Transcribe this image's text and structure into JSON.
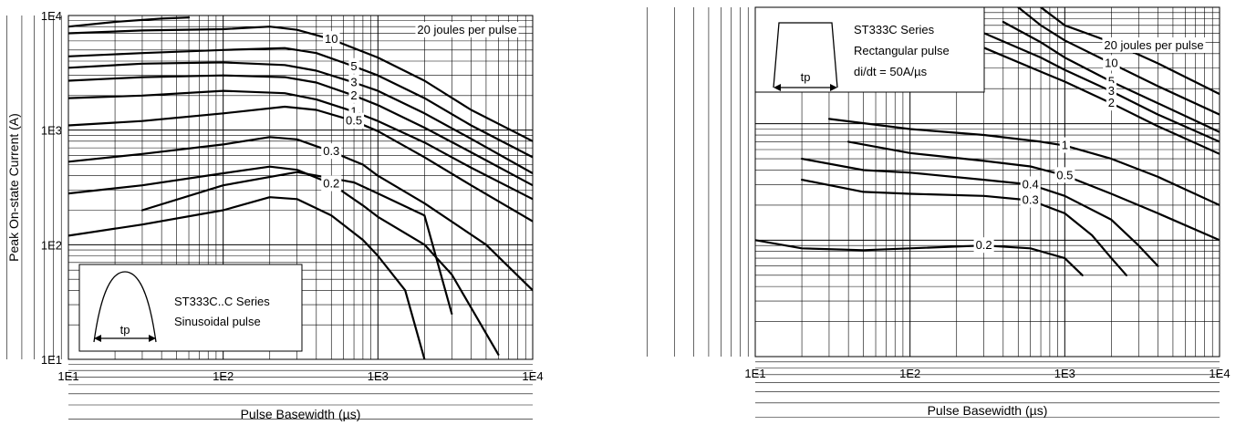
{
  "chart_data": [
    {
      "type": "line",
      "xscale": "log",
      "yscale": "log",
      "xlim": [
        10,
        10000
      ],
      "ylim": [
        10,
        10000
      ],
      "xticks": [
        "1E1",
        "1E2",
        "1E3",
        "1E4"
      ],
      "yticks": [
        "1E4",
        "1E3",
        "1E2",
        "1E1"
      ],
      "xlabel": "Pulse Basewidth (µs)",
      "ylabel": "Peak On-state Current (A)",
      "grid": true,
      "inset": {
        "lines": [
          "ST333C..C Series",
          "Sinusoidal pulse"
        ],
        "pulse_label": "tp",
        "shape": "sinusoidal"
      },
      "series": [
        {
          "label": "20 joules per pulse",
          "points": [
            [
              10,
              8000
            ],
            [
              20,
              8800
            ],
            [
              40,
              9400
            ],
            [
              60,
              9600
            ]
          ]
        },
        {
          "label": "10",
          "points": [
            [
              10,
              7000
            ],
            [
              30,
              7400
            ],
            [
              100,
              7600
            ],
            [
              200,
              8000
            ],
            [
              300,
              7500
            ],
            [
              500,
              6200
            ],
            [
              1000,
              4300
            ],
            [
              2000,
              2700
            ],
            [
              4000,
              1500
            ],
            [
              10000,
              800
            ]
          ]
        },
        {
          "label": "5",
          "points": [
            [
              10,
              4400
            ],
            [
              30,
              4700
            ],
            [
              100,
              5000
            ],
            [
              250,
              5200
            ],
            [
              400,
              4700
            ],
            [
              700,
              3600
            ],
            [
              1000,
              3000
            ],
            [
              2000,
              1900
            ],
            [
              4000,
              1100
            ],
            [
              10000,
              580
            ]
          ]
        },
        {
          "label": "3",
          "points": [
            [
              10,
              3500
            ],
            [
              30,
              3800
            ],
            [
              100,
              3900
            ],
            [
              250,
              3700
            ],
            [
              400,
              3300
            ],
            [
              700,
              2600
            ],
            [
              1000,
              2200
            ],
            [
              2000,
              1400
            ],
            [
              4000,
              840
            ],
            [
              10000,
              420
            ]
          ]
        },
        {
          "label": "2",
          "points": [
            [
              10,
              2700
            ],
            [
              30,
              2900
            ],
            [
              100,
              3000
            ],
            [
              250,
              2900
            ],
            [
              400,
              2600
            ],
            [
              700,
              2000
            ],
            [
              1000,
              1650
            ],
            [
              2000,
              1050
            ],
            [
              4000,
              640
            ],
            [
              10000,
              330
            ]
          ]
        },
        {
          "label": "1",
          "points": [
            [
              10,
              1900
            ],
            [
              30,
              2000
            ],
            [
              100,
              2200
            ],
            [
              250,
              2100
            ],
            [
              400,
              1850
            ],
            [
              700,
              1450
            ],
            [
              1000,
              1200
            ],
            [
              2000,
              780
            ],
            [
              4000,
              470
            ],
            [
              10000,
              250
            ]
          ]
        },
        {
          "label": "0.5",
          "points": [
            [
              10,
              1100
            ],
            [
              30,
              1200
            ],
            [
              100,
              1400
            ],
            [
              250,
              1600
            ],
            [
              400,
              1500
            ],
            [
              700,
              1200
            ],
            [
              1000,
              980
            ],
            [
              2000,
              580
            ],
            [
              4000,
              330
            ],
            [
              10000,
              160
            ]
          ]
        },
        {
          "label": "0.3",
          "points": [
            [
              10,
              530
            ],
            [
              30,
              620
            ],
            [
              100,
              750
            ],
            [
              200,
              870
            ],
            [
              300,
              830
            ],
            [
              500,
              650
            ],
            [
              800,
              500
            ],
            [
              1000,
              400
            ],
            [
              2000,
              230
            ],
            [
              5000,
              100
            ],
            [
              10000,
              40
            ]
          ]
        },
        {
          "label": "0.2",
          "points": [
            [
              10,
              280
            ],
            [
              30,
              330
            ],
            [
              100,
              420
            ],
            [
              200,
              480
            ],
            [
              300,
              450
            ],
            [
              500,
              340
            ],
            [
              800,
              220
            ],
            [
              1000,
              175
            ],
            [
              2000,
              100
            ],
            [
              3000,
              55
            ],
            [
              6000,
              11
            ]
          ]
        },
        {
          "label": "",
          "points": [
            [
              10,
              120
            ],
            [
              30,
              150
            ],
            [
              100,
              200
            ],
            [
              200,
              260
            ],
            [
              300,
              250
            ],
            [
              500,
              180
            ],
            [
              800,
              110
            ],
            [
              1000,
              80
            ],
            [
              1500,
              40
            ],
            [
              2000,
              10
            ]
          ]
        },
        {
          "label": "",
          "points": [
            [
              30,
              200
            ],
            [
              100,
              330
            ],
            [
              300,
              430
            ],
            [
              700,
              350
            ],
            [
              1000,
              280
            ],
            [
              2000,
              180
            ],
            [
              3000,
              25
            ]
          ]
        }
      ]
    },
    {
      "type": "line",
      "xscale": "log",
      "yscale": "log",
      "xlim": [
        10,
        10000
      ],
      "xticks": [
        "1E1",
        "1E2",
        "1E3",
        "1E4"
      ],
      "xlabel": "Pulse Basewidth (µs)",
      "ylabel": "",
      "grid": true,
      "inset": {
        "lines": [
          "ST333C Series",
          "Rectangular pulse",
          "di/dt = 50A/µs"
        ],
        "pulse_label": "tp",
        "shape": "rectangular"
      },
      "series": [
        {
          "label": "20 joules per pulse",
          "points": [
            [
              700,
              10000
            ],
            [
              1000,
              7000
            ],
            [
              2000,
              5000
            ],
            [
              4000,
              3300
            ],
            [
              10000,
              1800
            ]
          ]
        },
        {
          "label": "10",
          "points": [
            [
              500,
              10000
            ],
            [
              700,
              7000
            ],
            [
              1000,
              5200
            ],
            [
              2000,
              3300
            ],
            [
              4000,
              2100
            ],
            [
              10000,
              1200
            ]
          ]
        },
        {
          "label": "5",
          "points": [
            [
              400,
              7500
            ],
            [
              700,
              5000
            ],
            [
              1000,
              3700
            ],
            [
              2000,
              2300
            ],
            [
              4000,
              1500
            ],
            [
              10000,
              850
            ]
          ]
        },
        {
          "label": "3",
          "points": [
            [
              300,
              6000
            ],
            [
              700,
              3700
            ],
            [
              1000,
              2900
            ],
            [
              2000,
              1900
            ],
            [
              4000,
              1200
            ],
            [
              10000,
              700
            ]
          ]
        },
        {
          "label": "2",
          "points": [
            [
              300,
              4500
            ],
            [
              700,
              2800
            ],
            [
              1000,
              2300
            ],
            [
              2000,
              1500
            ],
            [
              4000,
              950
            ],
            [
              10000,
              550
            ]
          ]
        },
        {
          "label": "1",
          "points": [
            [
              30,
              1100
            ],
            [
              100,
              900
            ],
            [
              300,
              800
            ],
            [
              700,
              700
            ],
            [
              1000,
              650
            ],
            [
              2000,
              500
            ],
            [
              4000,
              350
            ],
            [
              10000,
              200
            ]
          ]
        },
        {
          "label": "0.5",
          "points": [
            [
              40,
              700
            ],
            [
              100,
              560
            ],
            [
              300,
              480
            ],
            [
              600,
              430
            ],
            [
              1000,
              360
            ],
            [
              2000,
              250
            ],
            [
              4000,
              170
            ],
            [
              10000,
              100
            ]
          ]
        },
        {
          "label": "0.4",
          "points": [
            [
              20,
              500
            ],
            [
              50,
              400
            ],
            [
              100,
              380
            ],
            [
              300,
              330
            ],
            [
              600,
              300
            ],
            [
              1000,
              240
            ],
            [
              2000,
              150
            ],
            [
              3000,
              90
            ],
            [
              4000,
              60
            ]
          ]
        },
        {
          "label": "0.3",
          "points": [
            [
              20,
              330
            ],
            [
              50,
              260
            ],
            [
              100,
              250
            ],
            [
              300,
              240
            ],
            [
              600,
              220
            ],
            [
              1000,
              170
            ],
            [
              1500,
              110
            ],
            [
              2000,
              70
            ],
            [
              2500,
              50
            ]
          ]
        },
        {
          "label": "0.2",
          "points": [
            [
              10,
              100
            ],
            [
              20,
              85
            ],
            [
              50,
              82
            ],
            [
              100,
              85
            ],
            [
              300,
              90
            ],
            [
              600,
              85
            ],
            [
              1000,
              70
            ],
            [
              1300,
              50
            ]
          ]
        }
      ]
    }
  ]
}
